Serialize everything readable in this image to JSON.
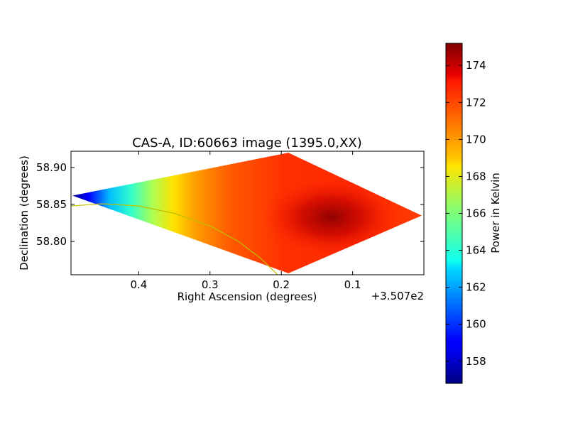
{
  "chart_data": {
    "type": "heatmap",
    "title": "CAS-A, ID:60663 image (1395.0,XX)",
    "xlabel": "Right Ascension (degrees)",
    "ylabel": "Declination (degrees)",
    "x_offset_label": "+3.507e2",
    "x_ticks": [
      "0.4",
      "0.3",
      "0.2",
      "0.1"
    ],
    "y_ticks": [
      "58.90",
      "58.85",
      "58.80"
    ],
    "xlim": [
      0.495,
      0.0
    ],
    "ylim": [
      58.755,
      58.922
    ],
    "grid": false,
    "map": {
      "shape": "diamond",
      "vertices": [
        {
          "ra": 0.493,
          "dec": 58.862
        },
        {
          "ra": 0.19,
          "dec": 58.92
        },
        {
          "ra": 0.003,
          "dec": 58.835
        },
        {
          "ra": 0.19,
          "dec": 58.757
        }
      ],
      "hot_spot": {
        "ra": 0.13,
        "dec": 58.833,
        "value": 175.0
      },
      "cold_edge_value": 157.0
    },
    "contour": {
      "color": "#bfbf00",
      "points": [
        {
          "ra": 0.495,
          "dec": 58.848
        },
        {
          "ra": 0.45,
          "dec": 58.851
        },
        {
          "ra": 0.4,
          "dec": 58.848
        },
        {
          "ra": 0.35,
          "dec": 58.838
        },
        {
          "ra": 0.3,
          "dec": 58.821
        },
        {
          "ra": 0.26,
          "dec": 58.8
        },
        {
          "ra": 0.23,
          "dec": 58.778
        },
        {
          "ra": 0.205,
          "dec": 58.755
        }
      ]
    },
    "colorbar": {
      "label": "Power in Kelvin",
      "ticks": [
        "158",
        "160",
        "162",
        "164",
        "166",
        "168",
        "170",
        "172",
        "174"
      ],
      "range": [
        156.8,
        175.2
      ],
      "colormap": "jet"
    }
  }
}
